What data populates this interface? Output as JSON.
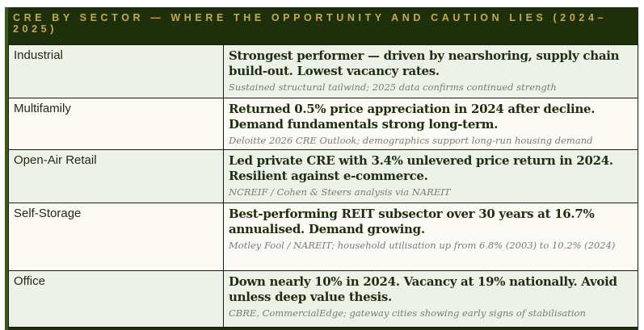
{
  "title": "CRE BY SECTOR — WHERE THE OPPORTUNITY AND CAUTION LIES (2024–2025)",
  "rows": [
    {
      "sector": "Industrial",
      "summary": "Strongest performer — driven by nearshoring, supply chain build-out. Lowest vacancy rates.",
      "source": "Sustained structural tailwind; 2025 data confirms continued strength"
    },
    {
      "sector": "Multifamily",
      "summary": "Returned 0.5% price appreciation in 2024 after decline. Demand fundamentals strong long-term.",
      "source": "Deloitte 2026 CRE Outlook; demographics support long-run housing demand"
    },
    {
      "sector": "Open-Air Retail",
      "summary": "Led private CRE with 3.4% unlevered price return in 2024. Resilient against e-commerce.",
      "source": "NCREIF / Cohen & Steers analysis via NAREIT"
    },
    {
      "sector": "Self-Storage",
      "summary": "Best-performing REIT subsector over 30 years at 16.7% annualised. Demand growing.",
      "source": "Motley Fool / NAREIT; household utilisation up from 6.8% (2003) to 10.2% (2024)"
    },
    {
      "sector": "Office",
      "summary": "Down nearly 10% in 2024. Vacancy at 19% nationally. Avoid unless deep value thesis.",
      "source": "CBRE, CommercialEdge; gateway cities showing early signs of stabilisation"
    }
  ]
}
